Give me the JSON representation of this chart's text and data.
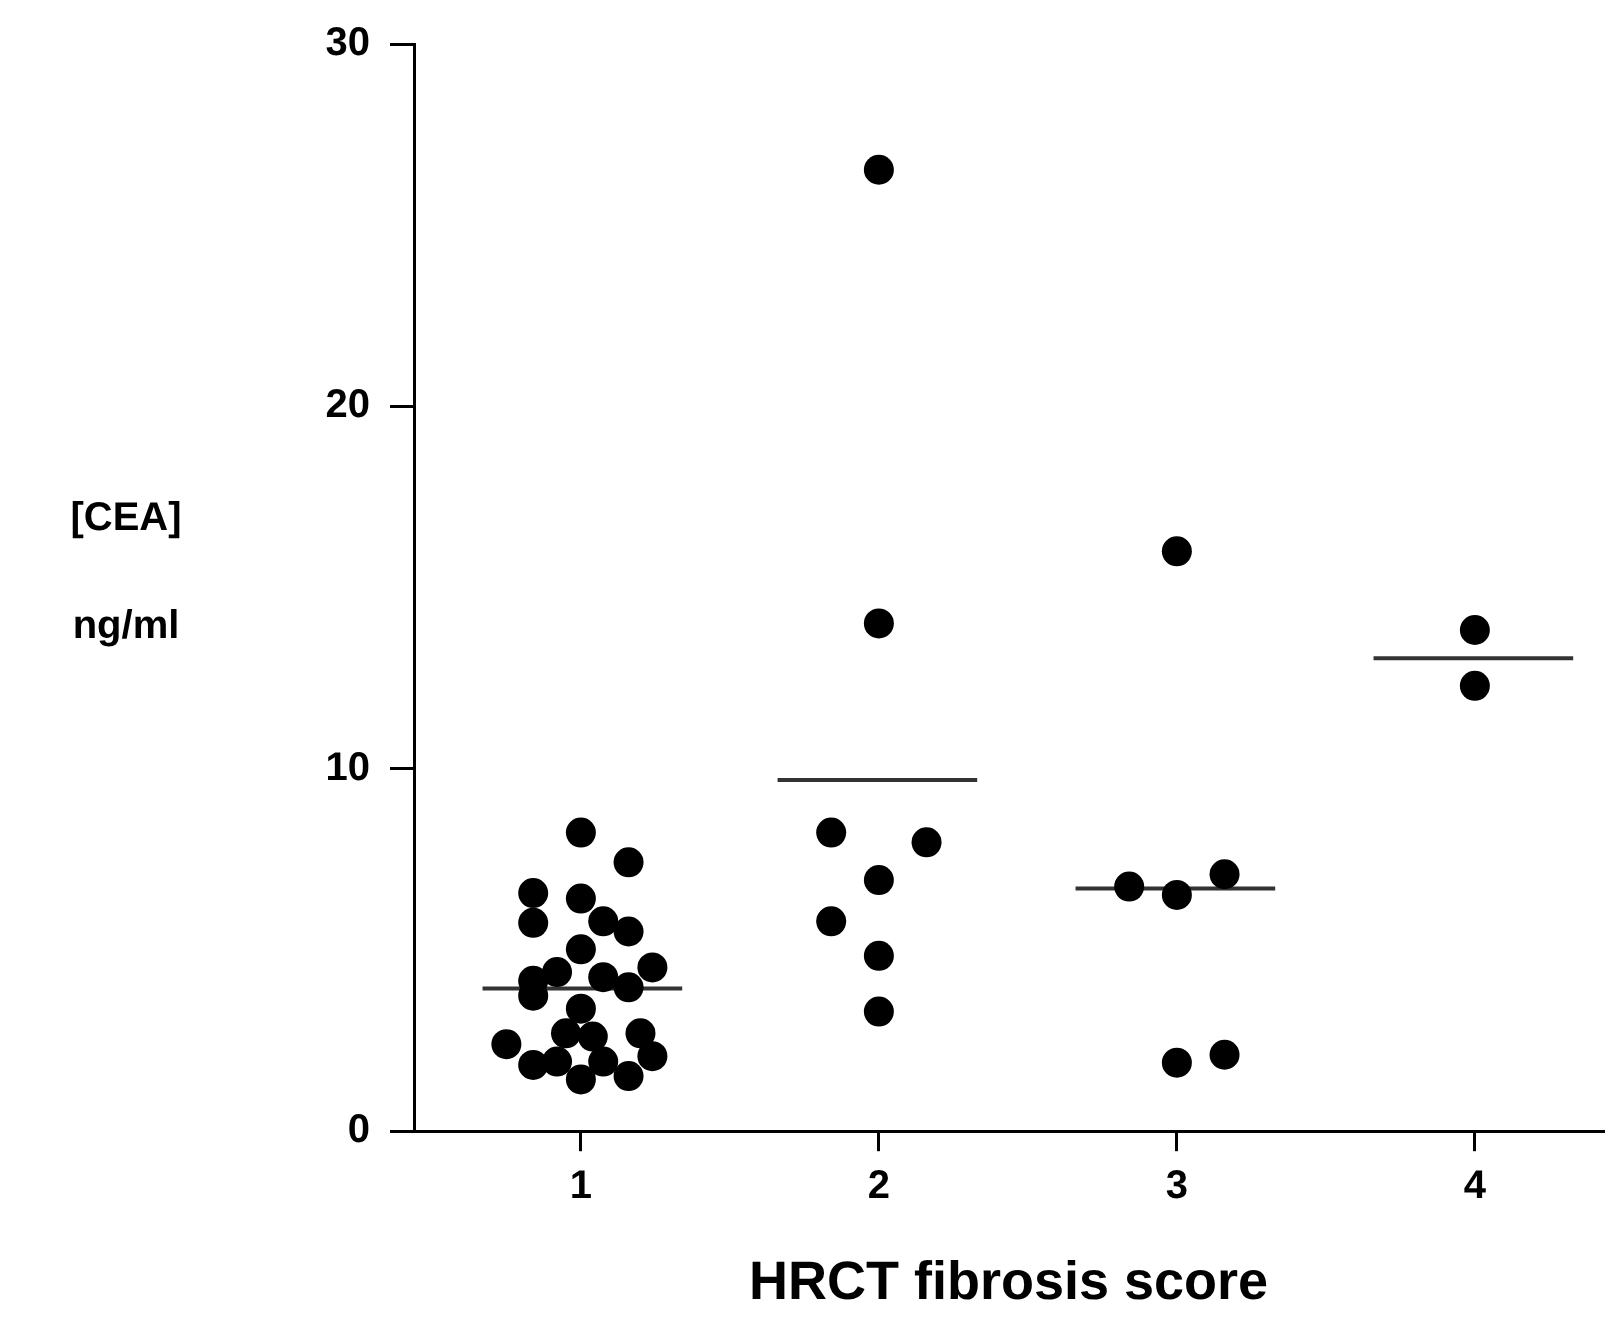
{
  "chart_data": {
    "type": "scatter",
    "xlabel": "HRCT fibrosis score",
    "ylabel": "[CEA]\nng/ml",
    "xlim": [
      0.44,
      4.43
    ],
    "xticks": [
      1,
      2,
      3,
      4
    ],
    "ylim": [
      0,
      30
    ],
    "yticks": [
      0,
      10,
      20,
      30
    ],
    "grid": false,
    "legend": false,
    "marker": "circle",
    "series": [
      {
        "type": "scatter",
        "color": "#000000",
        "x": [
          1,
          1.16,
          0.84,
          1,
          0.84,
          1.075,
          1.16,
          1,
          0.92,
          0.84,
          1.075,
          1.24,
          0.84,
          1.16,
          1,
          0.95,
          1.04,
          1.2,
          0.75,
          0.84,
          0.92,
          1.075,
          1.24,
          1,
          1.16,
          2,
          2,
          1.84,
          2.16,
          2,
          1.84,
          2,
          2,
          3,
          2.84,
          3,
          3.16,
          3,
          3.16,
          4,
          4
        ],
        "values": [
          8.24,
          7.42,
          6.57,
          6.42,
          5.75,
          5.79,
          5.51,
          5.02,
          4.39,
          4.15,
          4.25,
          4.52,
          3.74,
          3.97,
          3.38,
          2.7,
          2.61,
          2.7,
          2.4,
          1.83,
          1.92,
          1.92,
          2.07,
          1.43,
          1.52,
          26.53,
          14.01,
          8.24,
          7.97,
          6.93,
          5.79,
          4.84,
          3.3,
          16.0,
          6.75,
          6.52,
          7.09,
          1.89,
          2.11,
          13.83,
          12.29
        ]
      },
      {
        "type": "line",
        "color": "#333333",
        "marker": "none",
        "x": [
          0.67,
          1.34
        ],
        "values": [
          3.94,
          3.94
        ]
      },
      {
        "type": "line",
        "color": "#333333",
        "marker": "none",
        "x": [
          1.66,
          2.33
        ],
        "values": [
          9.69,
          9.69
        ]
      },
      {
        "type": "line",
        "color": "#333333",
        "marker": "none",
        "x": [
          2.66,
          3.33
        ],
        "values": [
          6.7,
          6.7
        ]
      },
      {
        "type": "line",
        "color": "#333333",
        "marker": "none",
        "x": [
          3.66,
          4.33
        ],
        "values": [
          13.05,
          13.05
        ]
      }
    ]
  }
}
